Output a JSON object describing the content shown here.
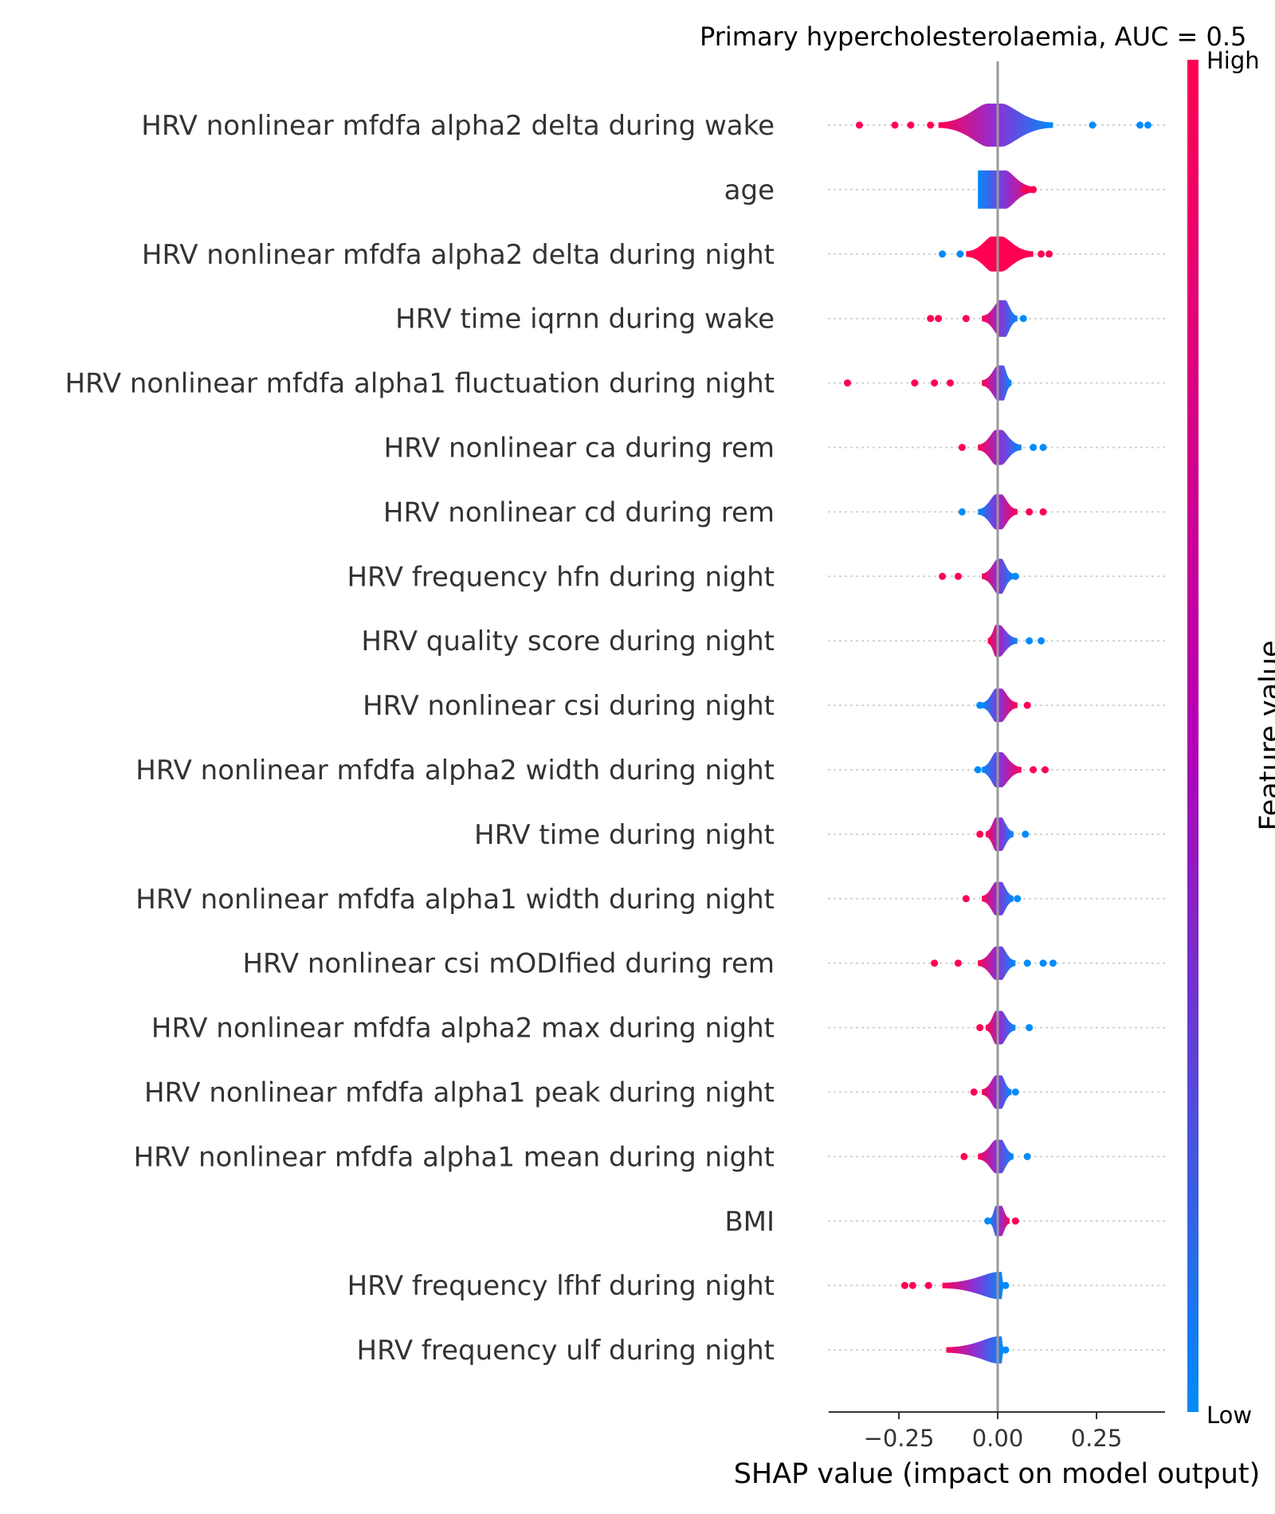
{
  "chart_data": {
    "type": "violin",
    "title": "Primary hypercholesterolaemia, AUC =  0.5",
    "xlabel": "SHAP value (impact on model output)",
    "xlim": [
      -0.5,
      0.5
    ],
    "xticks": [
      {
        "value": -0.25,
        "label": "−0.25"
      },
      {
        "value": 0.0,
        "label": "0.00"
      },
      {
        "value": 0.25,
        "label": "0.25"
      }
    ],
    "colorbar": {
      "label": "Feature value",
      "high_label": "High",
      "low_label": "Low",
      "high_color": "#ff0052",
      "mid_color": "#b400b4",
      "low_color": "#008bfb"
    },
    "features": [
      {
        "name": "HRV nonlinear mfdfa alpha2 delta during wake",
        "core": [
          -0.025,
          0.01
        ],
        "range": [
          -0.15,
          0.14
        ],
        "width": 27,
        "left_color": "high",
        "right_color": "low",
        "outliers_high": [
          -0.35,
          -0.26,
          -0.22,
          -0.17
        ],
        "outliers_low": [
          0.24,
          0.36,
          0.38
        ]
      },
      {
        "name": "age",
        "core": [
          -0.05,
          0.02
        ],
        "range": [
          -0.05,
          0.095
        ],
        "width": 24,
        "left_color": "low",
        "right_color": "high",
        "outliers_high": [
          0.07,
          0.09
        ],
        "outliers_low": []
      },
      {
        "name": "HRV nonlinear mfdfa alpha2 delta during night",
        "core": [
          -0.015,
          0.01
        ],
        "range": [
          -0.08,
          0.09
        ],
        "width": 22,
        "left_color": "high",
        "right_color": "high",
        "outliers_high": [
          0.11,
          0.13
        ],
        "outliers_low": [
          -0.14,
          -0.095
        ]
      },
      {
        "name": "HRV time iqrnn during wake",
        "core": [
          0.005,
          0.02
        ],
        "range": [
          -0.04,
          0.05
        ],
        "width": 23,
        "left_color": "high",
        "right_color": "low",
        "outliers_high": [
          -0.17,
          -0.15,
          -0.08
        ],
        "outliers_low": [
          0.065
        ]
      },
      {
        "name": "HRV nonlinear mfdfa alpha1 fluctuation during night",
        "core": [
          0.0,
          0.015
        ],
        "range": [
          -0.04,
          0.035
        ],
        "width": 22,
        "left_color": "high",
        "right_color": "low",
        "outliers_high": [
          -0.38,
          -0.21,
          -0.16,
          -0.12
        ],
        "outliers_low": []
      },
      {
        "name": "HRV nonlinear ca during rem",
        "core": [
          -0.005,
          0.01
        ],
        "range": [
          -0.05,
          0.06
        ],
        "width": 22,
        "left_color": "high",
        "right_color": "low",
        "outliers_high": [
          -0.09
        ],
        "outliers_low": [
          0.09,
          0.115
        ]
      },
      {
        "name": "HRV nonlinear cd during rem",
        "core": [
          -0.005,
          0.01
        ],
        "range": [
          -0.05,
          0.05
        ],
        "width": 22,
        "left_color": "low",
        "right_color": "high",
        "outliers_high": [
          0.08,
          0.115
        ],
        "outliers_low": [
          -0.09
        ]
      },
      {
        "name": "HRV frequency hfn during night",
        "core": [
          0.0,
          0.01
        ],
        "range": [
          -0.04,
          0.04
        ],
        "width": 22,
        "left_color": "high",
        "right_color": "low",
        "outliers_high": [
          -0.14,
          -0.1
        ],
        "outliers_low": [
          0.045
        ]
      },
      {
        "name": "HRV quality score during night",
        "core": [
          -0.005,
          0.005
        ],
        "range": [
          -0.025,
          0.05
        ],
        "width": 20,
        "left_color": "high",
        "right_color": "low",
        "outliers_high": [],
        "outliers_low": [
          0.08,
          0.11
        ]
      },
      {
        "name": "HRV nonlinear csi during night",
        "core": [
          -0.005,
          0.01
        ],
        "range": [
          -0.04,
          0.05
        ],
        "width": 21,
        "left_color": "low",
        "right_color": "high",
        "outliers_high": [
          0.075
        ],
        "outliers_low": [
          -0.045
        ]
      },
      {
        "name": "HRV nonlinear mfdfa alpha2 width during night",
        "core": [
          -0.005,
          0.01
        ],
        "range": [
          -0.04,
          0.06
        ],
        "width": 22,
        "left_color": "low",
        "right_color": "high",
        "outliers_high": [
          0.09,
          0.12
        ],
        "outliers_low": [
          -0.05
        ]
      },
      {
        "name": "HRV time during night",
        "core": [
          -0.005,
          0.01
        ],
        "range": [
          -0.03,
          0.04
        ],
        "width": 21,
        "left_color": "high",
        "right_color": "low",
        "outliers_high": [
          -0.045
        ],
        "outliers_low": [
          0.07
        ]
      },
      {
        "name": "HRV nonlinear mfdfa alpha1 width during night",
        "core": [
          -0.005,
          0.01
        ],
        "range": [
          -0.04,
          0.04
        ],
        "width": 21,
        "left_color": "high",
        "right_color": "low",
        "outliers_high": [
          -0.08
        ],
        "outliers_low": [
          0.05
        ]
      },
      {
        "name": "HRV nonlinear csi mODIfied during rem",
        "core": [
          -0.005,
          0.01
        ],
        "range": [
          -0.05,
          0.045
        ],
        "width": 21,
        "left_color": "high",
        "right_color": "low",
        "outliers_high": [
          -0.16,
          -0.1
        ],
        "outliers_low": [
          0.075,
          0.115,
          0.14
        ]
      },
      {
        "name": "HRV nonlinear mfdfa alpha2 max during night",
        "core": [
          -0.005,
          0.01
        ],
        "range": [
          -0.03,
          0.045
        ],
        "width": 21,
        "left_color": "high",
        "right_color": "low",
        "outliers_high": [
          -0.045
        ],
        "outliers_low": [
          0.08
        ]
      },
      {
        "name": "HRV nonlinear mfdfa alpha1 peak during night",
        "core": [
          -0.005,
          0.01
        ],
        "range": [
          -0.04,
          0.035
        ],
        "width": 21,
        "left_color": "high",
        "right_color": "low",
        "outliers_high": [
          -0.06
        ],
        "outliers_low": [
          0.045
        ]
      },
      {
        "name": "HRV nonlinear mfdfa alpha1 mean during night",
        "core": [
          -0.005,
          0.01
        ],
        "range": [
          -0.05,
          0.04
        ],
        "width": 21,
        "left_color": "high",
        "right_color": "low",
        "outliers_high": [
          -0.085
        ],
        "outliers_low": [
          0.075
        ]
      },
      {
        "name": "BMI",
        "core": [
          -0.005,
          0.01
        ],
        "range": [
          -0.02,
          0.03
        ],
        "width": 19,
        "left_color": "low",
        "right_color": "high",
        "outliers_high": [
          0.045
        ],
        "outliers_low": [
          -0.025
        ]
      },
      {
        "name": "HRV frequency lfhf during night",
        "core": [
          0.0,
          0.01
        ],
        "range": [
          -0.14,
          0.015
        ],
        "width": 17,
        "left_color": "high",
        "right_color": "low",
        "outliers_high": [
          -0.235,
          -0.215,
          -0.175
        ],
        "outliers_low": [
          0.02
        ]
      },
      {
        "name": "HRV frequency ulf during night",
        "core": [
          0.0,
          0.01
        ],
        "range": [
          -0.13,
          0.015
        ],
        "width": 17,
        "left_color": "high",
        "right_color": "low",
        "outliers_high": [],
        "outliers_low": [
          0.02
        ]
      }
    ]
  }
}
